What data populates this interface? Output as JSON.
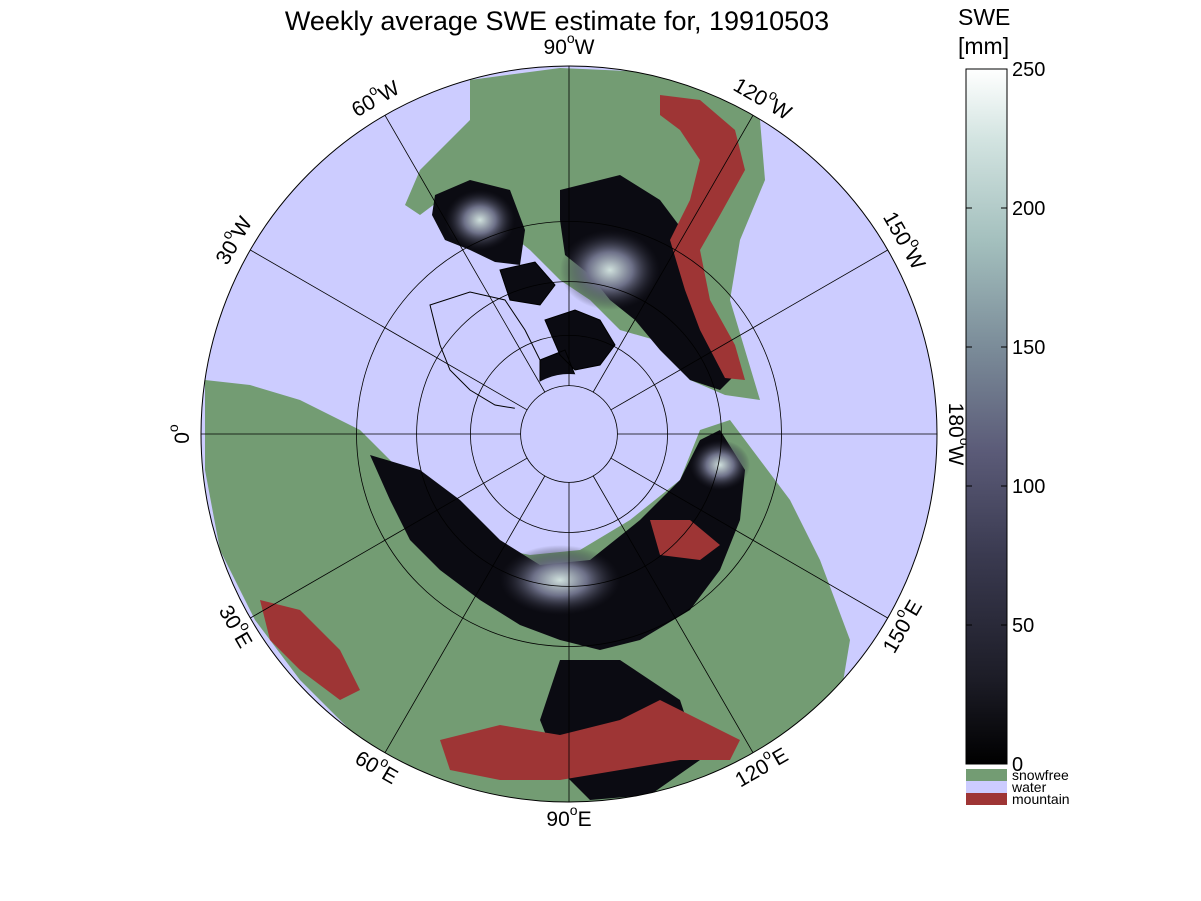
{
  "title": "Weekly average SWE estimate for, 19910503",
  "map": {
    "projection": "north-polar-stereographic",
    "graticule_latitudes": [
      30,
      45,
      60,
      75
    ],
    "meridian_spacing_deg": 30,
    "meridian_labels": [
      {
        "text": "90",
        "suffix": "W",
        "angle": 0
      },
      {
        "text": "120",
        "suffix": "W",
        "angle": 30
      },
      {
        "text": "150",
        "suffix": "W",
        "angle": 60
      },
      {
        "text": "180",
        "suffix": "W",
        "angle": 90
      },
      {
        "text": "150",
        "suffix": "E",
        "angle": 120
      },
      {
        "text": "120",
        "suffix": "E",
        "angle": 150
      },
      {
        "text": "90",
        "suffix": "E",
        "angle": 180
      },
      {
        "text": "60",
        "suffix": "E",
        "angle": 210
      },
      {
        "text": "30",
        "suffix": "E",
        "angle": 240
      },
      {
        "text": "0",
        "suffix": "",
        "angle": 270
      },
      {
        "text": "30",
        "suffix": "W",
        "angle": 300
      },
      {
        "text": "60",
        "suffix": "W",
        "angle": 330
      }
    ],
    "colors": {
      "water": "#ccccff",
      "snowfree": "#739c73",
      "mountain": "#9e3535",
      "snow_low": "#0b0b12",
      "snow_mid": "#4a4a63",
      "snow_high": "#d7e6e4",
      "outline": "#000000"
    }
  },
  "colorbar": {
    "title_line1": "SWE",
    "title_line2": "[mm]",
    "min": 0,
    "max": 250,
    "ticks": [
      "0",
      "50",
      "100",
      "150",
      "200",
      "250"
    ],
    "tick_values": [
      0,
      50,
      100,
      150,
      200,
      250
    ],
    "legend": [
      {
        "label": "snowfree",
        "color": "#739c73"
      },
      {
        "label": "water",
        "color": "#ccccff"
      },
      {
        "label": "mountain",
        "color": "#9e3535"
      }
    ]
  }
}
